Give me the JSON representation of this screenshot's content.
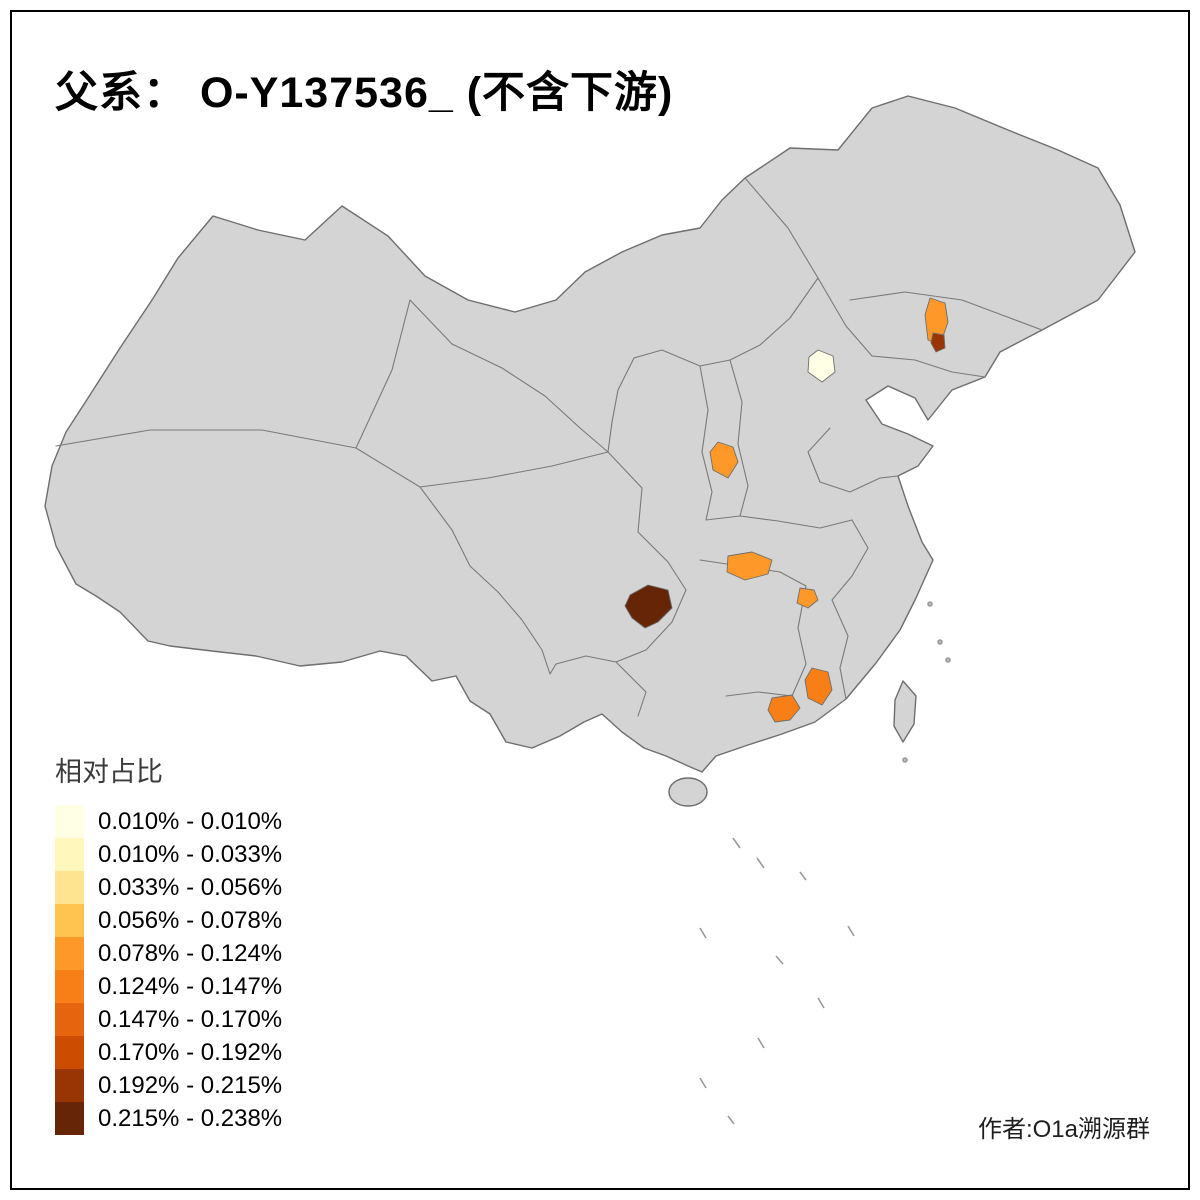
{
  "title": "父系： O-Y137536_ (不含下游)",
  "author": "作者:O1a溯源群",
  "legend": {
    "title": "相对占比",
    "items": [
      {
        "label": "0.010% - 0.010%",
        "color": "#FFFFE5"
      },
      {
        "label": "0.010% - 0.033%",
        "color": "#FFF7BC"
      },
      {
        "label": "0.033% - 0.056%",
        "color": "#FEE391"
      },
      {
        "label": "0.056% - 0.078%",
        "color": "#FEC44F"
      },
      {
        "label": "0.078% - 0.124%",
        "color": "#FE9929"
      },
      {
        "label": "0.124% - 0.147%",
        "color": "#F87F17"
      },
      {
        "label": "0.147% - 0.170%",
        "color": "#E6640E"
      },
      {
        "label": "0.170% - 0.192%",
        "color": "#CC4C02"
      },
      {
        "label": "0.192% - 0.215%",
        "color": "#993404"
      },
      {
        "label": "0.215% - 0.238%",
        "color": "#662506"
      }
    ]
  },
  "map": {
    "base_fill": "#D4D4D4",
    "border_color": "#6E6E6E",
    "background": "#FFFFFF",
    "regions": [
      {
        "id": "beijing-area",
        "color": "#FFFFE5",
        "class": "0.010% - 0.010%"
      },
      {
        "id": "liaoning-area",
        "color": "#FE9929",
        "class": "0.078% - 0.124%"
      },
      {
        "id": "liaoning-dark-spot",
        "color": "#993404",
        "class": "0.192% - 0.215%"
      },
      {
        "id": "shaanxi-area",
        "color": "#FE9929",
        "class": "0.078% - 0.124%"
      },
      {
        "id": "hubei-west-area",
        "color": "#FE9929",
        "class": "0.078% - 0.124%"
      },
      {
        "id": "hunan-east-area",
        "color": "#FE9929",
        "class": "0.078% - 0.124%"
      },
      {
        "id": "sichuan-chongqing-area",
        "color": "#662506",
        "class": "0.215% - 0.238%"
      },
      {
        "id": "guangdong-east-area",
        "color": "#F87F17",
        "class": "0.124% - 0.147%"
      },
      {
        "id": "pearl-delta-area",
        "color": "#F87F17",
        "class": "0.124% - 0.147%"
      }
    ]
  },
  "chart_data": {
    "type": "choropleth",
    "title": "父系： O-Y137536_ (不含下游)",
    "legend_title": "相对占比",
    "legend_position": "bottom-left",
    "classes": [
      {
        "label": "0.010% - 0.010%",
        "color": "#FFFFE5"
      },
      {
        "label": "0.010% - 0.033%",
        "color": "#FFF7BC"
      },
      {
        "label": "0.033% - 0.056%",
        "color": "#FEE391"
      },
      {
        "label": "0.056% - 0.078%",
        "color": "#FEC44F"
      },
      {
        "label": "0.078% - 0.124%",
        "color": "#FE9929"
      },
      {
        "label": "0.124% - 0.147%",
        "color": "#F87F17"
      },
      {
        "label": "0.147% - 0.170%",
        "color": "#E6640E"
      },
      {
        "label": "0.170% - 0.192%",
        "color": "#CC4C02"
      },
      {
        "label": "0.192% - 0.215%",
        "color": "#993404"
      },
      {
        "label": "0.215% - 0.238%",
        "color": "#662506"
      }
    ],
    "highlighted_regions": [
      {
        "area": "Beijing vicinity (north China)",
        "class": "0.010% - 0.010%"
      },
      {
        "area": "Central Liaoning (northeast)",
        "class": "0.078% - 0.124%"
      },
      {
        "area": "Small spot in Liaoning (northeast)",
        "class": "0.192% - 0.215%"
      },
      {
        "area": "Central Shaanxi",
        "class": "0.078% - 0.124%"
      },
      {
        "area": "Western Hubei",
        "class": "0.078% - 0.124%"
      },
      {
        "area": "Hunan/Jiangxi border area",
        "class": "0.078% - 0.124%"
      },
      {
        "area": "Sichuan–Chongqing area (darkest)",
        "class": "0.215% - 0.238%"
      },
      {
        "area": "Eastern Guangdong",
        "class": "0.124% - 0.147%"
      },
      {
        "area": "Pearl River Delta (Guangdong)",
        "class": "0.124% - 0.147%"
      }
    ],
    "unshaded_region_fill": "#D4D4D4"
  }
}
